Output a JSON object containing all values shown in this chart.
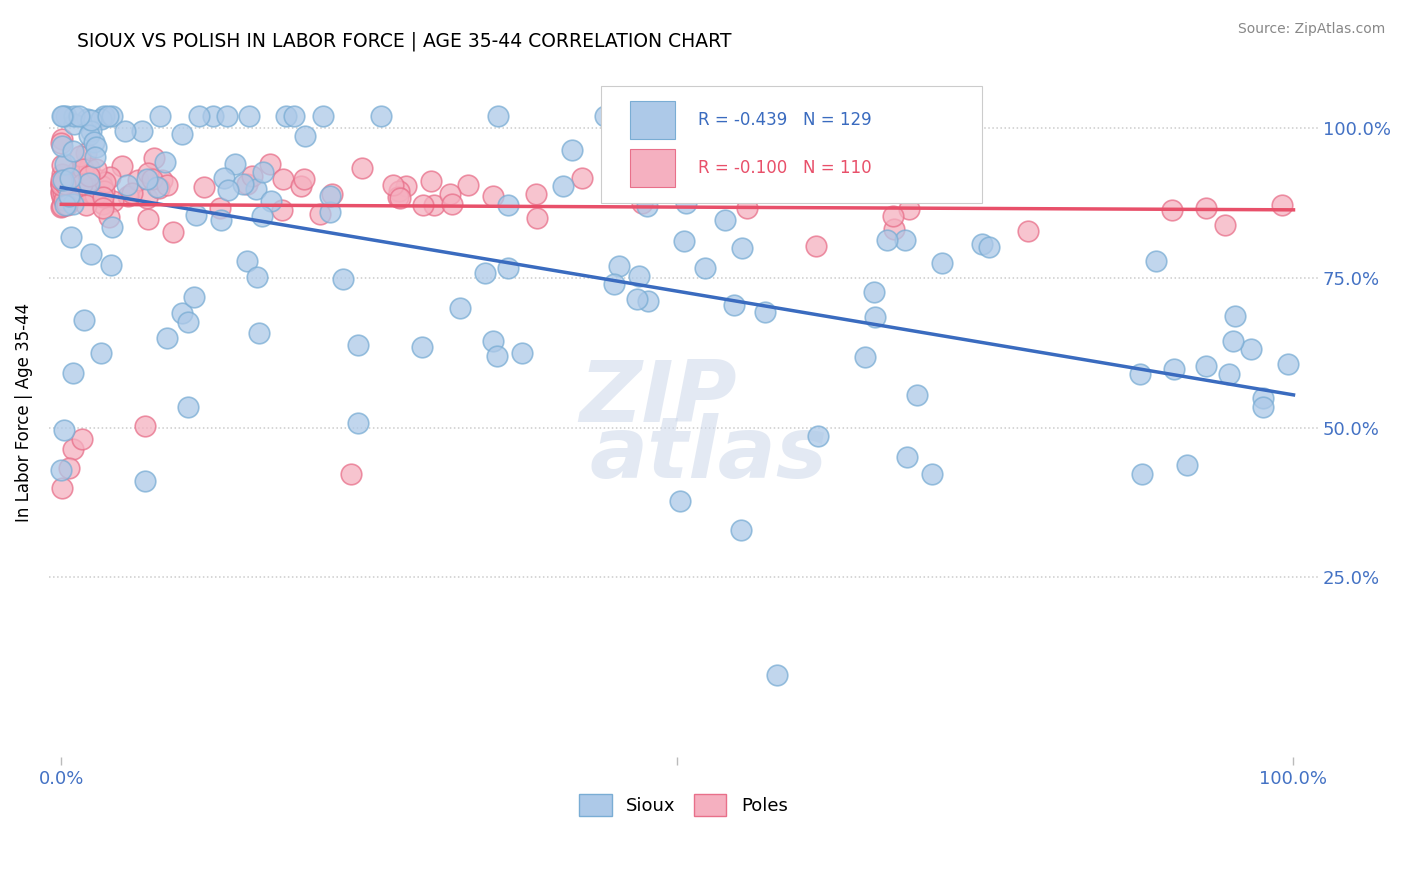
{
  "title": "SIOUX VS POLISH IN LABOR FORCE | AGE 35-44 CORRELATION CHART",
  "source": "Source: ZipAtlas.com",
  "ylabel": "In Labor Force | Age 35-44",
  "legend_sioux": {
    "R": -0.439,
    "N": 129,
    "label": "Sioux"
  },
  "legend_poles": {
    "R": -0.1,
    "N": 110,
    "label": "Poles"
  },
  "sioux_color": "#adc9e8",
  "poles_color": "#f5b0c0",
  "sioux_edge": "#7aadd4",
  "poles_edge": "#e8708a",
  "trend_sioux_color": "#3a6bbf",
  "trend_poles_color": "#e8506a",
  "background": "#ffffff",
  "watermark1": "ZIP",
  "watermark2": "atlas",
  "grid_color": "#cccccc",
  "tick_color": "#4472c4",
  "source_color": "#888888",
  "legend_box_color": "#eeeeee"
}
